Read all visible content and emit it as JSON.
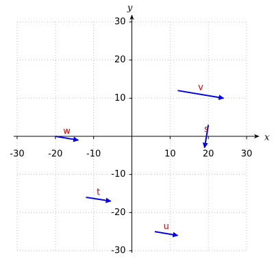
{
  "chart_data": {
    "type": "vector",
    "x_label": "x",
    "y_label": "y",
    "xlim": [
      -30,
      30
    ],
    "ylim": [
      -30,
      30
    ],
    "xticks": [
      -30,
      -20,
      -10,
      10,
      20,
      30
    ],
    "yticks": [
      -30,
      -20,
      -10,
      10,
      20,
      30
    ],
    "grid": true,
    "color": "#0000ee",
    "label_color": "#dd0000",
    "vectors": [
      {
        "name": "v",
        "x": 12,
        "y": 12,
        "x2": 24,
        "y2": 10
      },
      {
        "name": "s",
        "x": 20,
        "y": 3,
        "x2": 19,
        "y2": -3
      },
      {
        "name": "w",
        "x": -20,
        "y": 0,
        "x2": -14,
        "y2": -1
      },
      {
        "name": "t",
        "x": -12,
        "y": -16,
        "x2": -5.5,
        "y2": -17
      },
      {
        "name": "u",
        "x": 6,
        "y": -25,
        "x2": 12,
        "y2": -26
      }
    ]
  }
}
